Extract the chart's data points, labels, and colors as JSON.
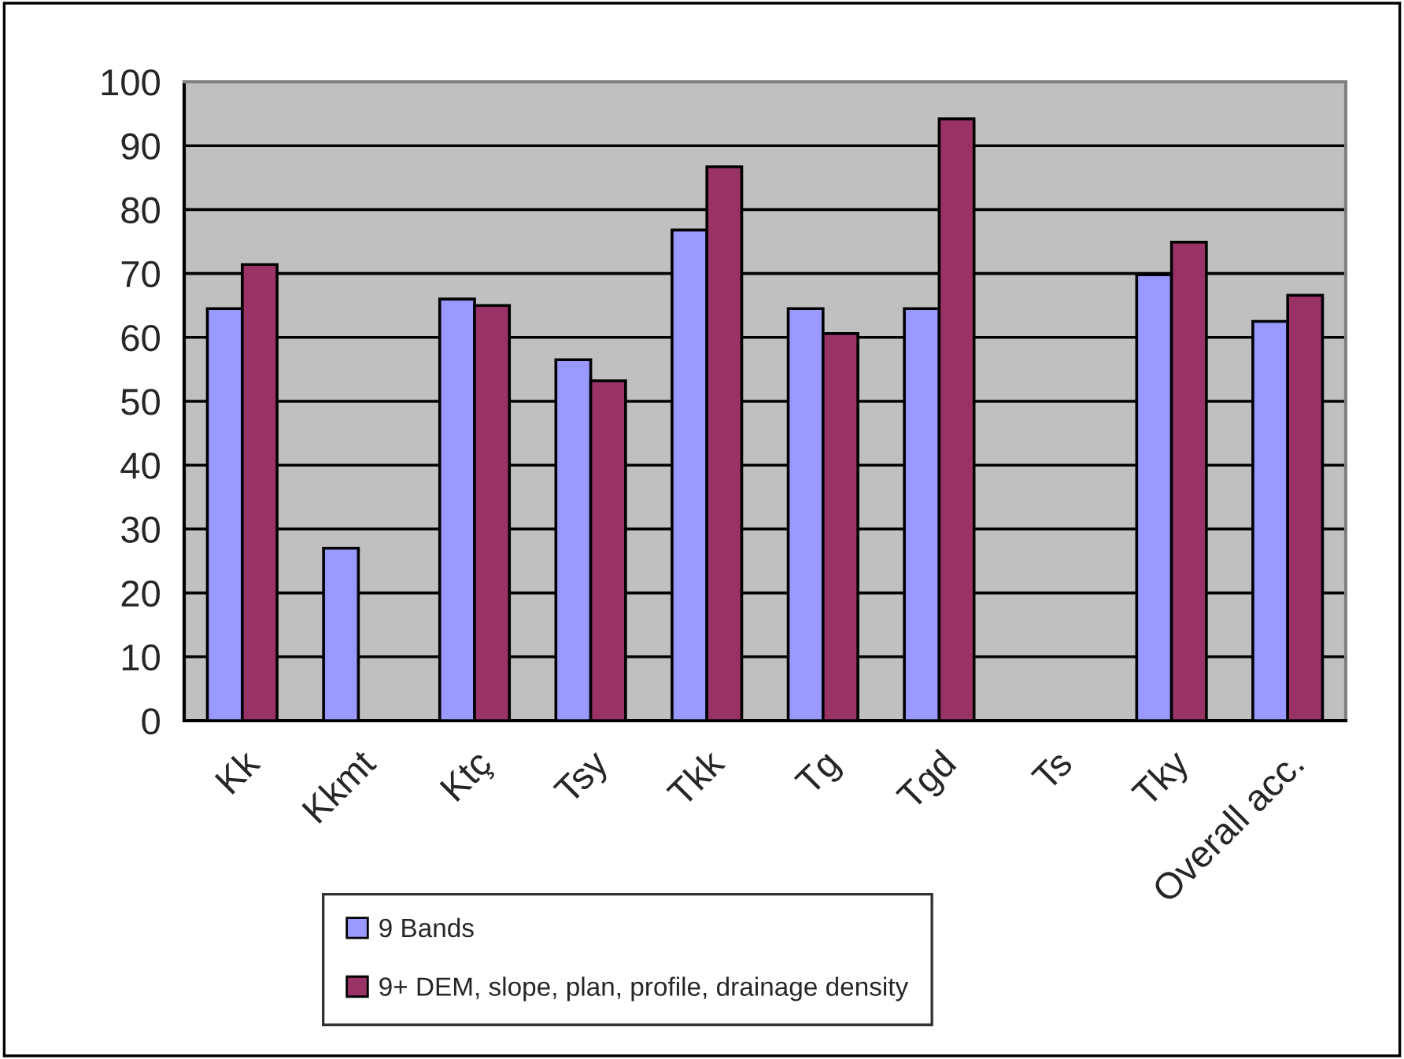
{
  "chart_data": {
    "type": "bar",
    "categories": [
      "Kk",
      "Kkmt",
      "Ktç",
      "Tsy",
      "Tkk",
      "Tg",
      "Tgd",
      "Ts",
      "Tky",
      "Overall acc."
    ],
    "series": [
      {
        "name": "9 Bands",
        "color": "#9999ff",
        "values": [
          64.5,
          27.0,
          66.0,
          56.5,
          76.8,
          64.5,
          64.5,
          null,
          69.8,
          62.5
        ]
      },
      {
        "name": "9+ DEM, slope, plan, profile, drainage density",
        "color": "#993366",
        "values": [
          71.4,
          null,
          65.0,
          53.2,
          86.7,
          60.6,
          94.2,
          null,
          74.9,
          66.6
        ]
      }
    ],
    "ylim": [
      0,
      100
    ],
    "yticks": [
      0,
      10,
      20,
      30,
      40,
      50,
      60,
      70,
      80,
      90,
      100
    ],
    "grid": "y",
    "legend": "bottom"
  }
}
